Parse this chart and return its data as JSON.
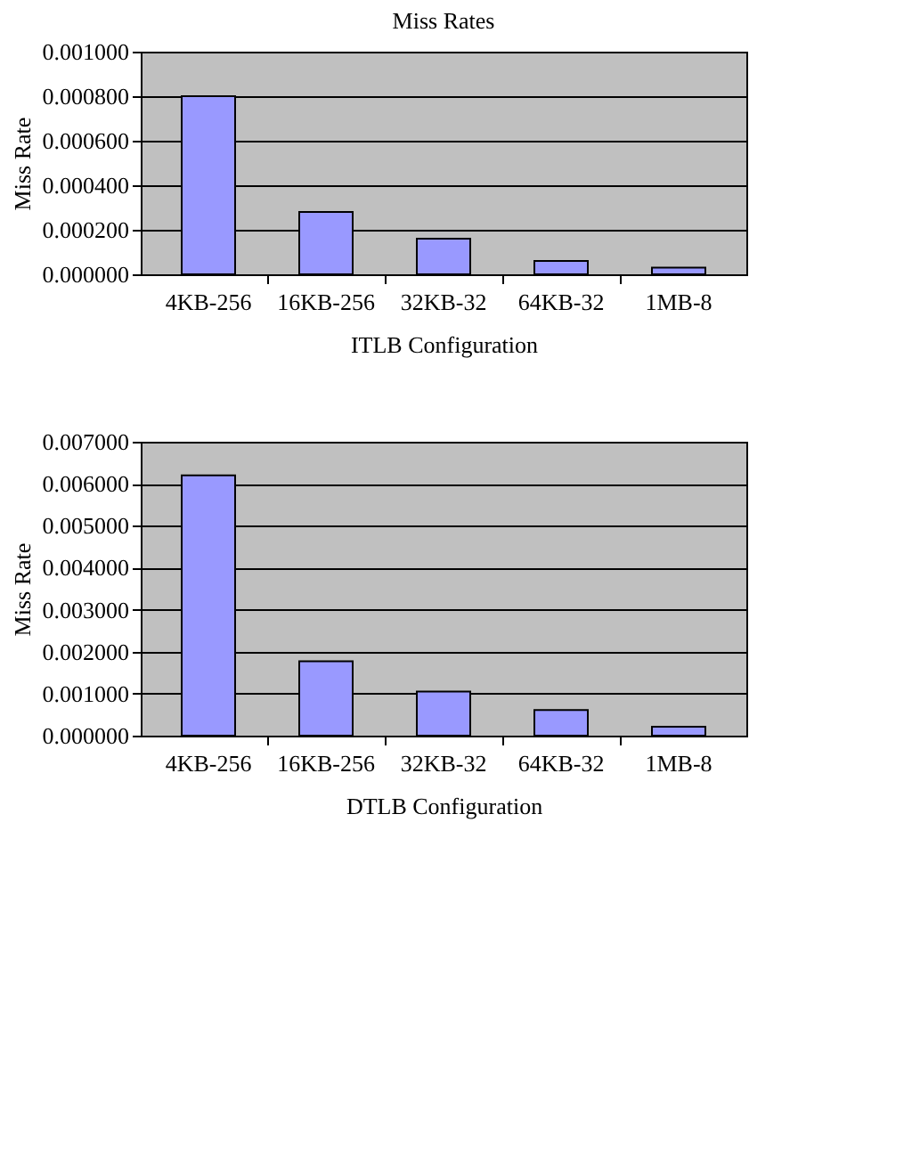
{
  "chart_data": [
    {
      "type": "bar",
      "title": "Miss Rates",
      "xlabel": "ITLB Configuration",
      "ylabel": "Miss Rate",
      "categories": [
        "4KB-256",
        "16KB-256",
        "32KB-32",
        "64KB-32",
        "1MB-8"
      ],
      "values": [
        0.0008,
        0.00028,
        0.00016,
        6e-05,
        3e-05
      ],
      "color": "#9999ff",
      "ylim": [
        0,
        0.001
      ],
      "yticks": [
        {
          "value": 0,
          "label": "0.000000"
        },
        {
          "value": 0.0002,
          "label": "0.000200"
        },
        {
          "value": 0.0004,
          "label": "0.000400"
        },
        {
          "value": 0.0006,
          "label": "0.000600"
        },
        {
          "value": 0.0008,
          "label": "0.000800"
        },
        {
          "value": 0.001,
          "label": "0.001000"
        }
      ],
      "grid": "y"
    },
    {
      "type": "bar",
      "xlabel": "DTLB Configuration",
      "ylabel": "Miss Rate",
      "categories": [
        "4KB-256",
        "16KB-256",
        "32KB-32",
        "64KB-32",
        "1MB-8"
      ],
      "values": [
        0.0062,
        0.00177,
        0.00105,
        0.00061,
        0.00021
      ],
      "color": "#9999ff",
      "ylim": [
        0,
        0.007
      ],
      "yticks": [
        {
          "value": 0,
          "label": "0.000000"
        },
        {
          "value": 0.001,
          "label": "0.001000"
        },
        {
          "value": 0.002,
          "label": "0.002000"
        },
        {
          "value": 0.003,
          "label": "0.003000"
        },
        {
          "value": 0.004,
          "label": "0.004000"
        },
        {
          "value": 0.005,
          "label": "0.005000"
        },
        {
          "value": 0.006,
          "label": "0.006000"
        },
        {
          "value": 0.007,
          "label": "0.007000"
        }
      ],
      "grid": "y"
    }
  ]
}
